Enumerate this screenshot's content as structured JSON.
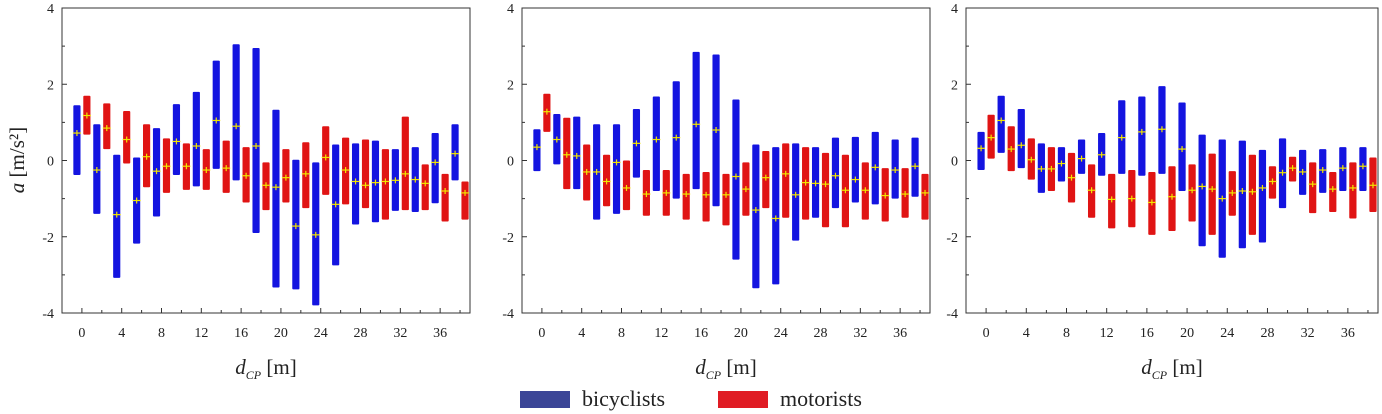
{
  "colors": {
    "bicyclists": "#1414e0",
    "motorists": "#e01414",
    "mean_marker": "#f2e600",
    "legend_bicyclists": "#3b4597",
    "legend_motorists": "#e01c24"
  },
  "axis_labels": {
    "ylabel_symbol": "a",
    "ylabel_unit": "[m/s²]",
    "xlabel_symbol": "d",
    "xlabel_subscript": "CP",
    "xlabel_unit": "[m]"
  },
  "legend": {
    "bicyclists": "bicyclists",
    "motorists": "motorists"
  },
  "chart_data": [
    {
      "type": "range-bar",
      "xlim": [
        -2,
        39
      ],
      "ylim": [
        -4,
        4
      ],
      "xticks": [
        0,
        4,
        8,
        12,
        16,
        20,
        24,
        28,
        32,
        36
      ],
      "yticks": [
        -4,
        -2,
        0,
        2,
        4
      ],
      "series": [
        {
          "name": "bicyclists",
          "x": [
            -0.5,
            1.5,
            3.5,
            5.5,
            7.5,
            9.5,
            11.5,
            13.5,
            15.5,
            17.5,
            19.5,
            21.5,
            23.5,
            25.5,
            27.5,
            29.5,
            31.5,
            33.5,
            35.5,
            37.5
          ],
          "low": [
            -0.38,
            -1.4,
            -3.08,
            -2.18,
            -1.47,
            -0.38,
            -0.68,
            -0.22,
            -0.52,
            -1.9,
            -3.33,
            -3.38,
            -3.8,
            -2.75,
            -1.68,
            -1.62,
            -1.32,
            -1.35,
            -1.12,
            -0.52
          ],
          "high": [
            1.45,
            0.95,
            0.15,
            0.08,
            0.85,
            1.48,
            1.8,
            2.62,
            3.05,
            2.95,
            1.33,
            0.02,
            -0.05,
            0.42,
            0.45,
            0.52,
            0.3,
            0.35,
            0.72,
            0.95
          ],
          "mean": [
            0.72,
            -0.25,
            -1.42,
            -1.05,
            -0.28,
            0.5,
            0.38,
            1.05,
            0.9,
            0.38,
            -0.7,
            -1.72,
            -1.95,
            -1.15,
            -0.55,
            -0.58,
            -0.52,
            -0.5,
            -0.05,
            0.18
          ]
        },
        {
          "name": "motorists",
          "x": [
            0.5,
            2.5,
            4.5,
            6.5,
            8.5,
            10.5,
            12.5,
            14.5,
            16.5,
            18.5,
            20.5,
            22.5,
            24.5,
            26.5,
            28.5,
            30.5,
            32.5,
            34.5,
            36.5,
            38.5
          ],
          "low": [
            0.68,
            0.3,
            -0.08,
            -0.7,
            -0.85,
            -0.77,
            -0.77,
            -0.85,
            -1.1,
            -1.3,
            -1.1,
            -1.25,
            -0.9,
            -1.15,
            -1.25,
            -1.55,
            -1.3,
            -1.3,
            -1.6,
            -1.55
          ],
          "high": [
            1.7,
            1.5,
            1.3,
            0.95,
            0.58,
            0.45,
            0.3,
            0.52,
            0.35,
            -0.05,
            0.3,
            0.48,
            0.9,
            0.6,
            0.55,
            0.3,
            1.15,
            -0.1,
            -0.35,
            -0.55
          ],
          "mean": [
            1.18,
            0.85,
            0.55,
            0.1,
            -0.15,
            -0.15,
            -0.25,
            -0.2,
            -0.4,
            -0.65,
            -0.45,
            -0.35,
            0.08,
            -0.25,
            -0.65,
            -0.55,
            -0.35,
            -0.6,
            -0.8,
            -0.85
          ]
        }
      ]
    },
    {
      "type": "range-bar",
      "xlim": [
        -2,
        39
      ],
      "ylim": [
        -4,
        4
      ],
      "xticks": [
        0,
        4,
        8,
        12,
        16,
        20,
        24,
        28,
        32,
        36
      ],
      "yticks": [
        -4,
        -2,
        0,
        2,
        4
      ],
      "series": [
        {
          "name": "bicyclists",
          "x": [
            -0.5,
            1.5,
            3.5,
            5.5,
            7.5,
            9.5,
            11.5,
            13.5,
            15.5,
            17.5,
            19.5,
            21.5,
            23.5,
            25.5,
            27.5,
            29.5,
            31.5,
            33.5,
            35.5,
            37.5
          ],
          "low": [
            -0.28,
            -0.1,
            -0.75,
            -1.55,
            -1.4,
            -0.45,
            -0.8,
            -1.0,
            -0.75,
            -1.2,
            -2.6,
            -3.35,
            -3.25,
            -2.1,
            -1.5,
            -1.25,
            -1.1,
            -1.15,
            -1.0,
            -0.95
          ],
          "high": [
            0.82,
            1.22,
            1.15,
            0.95,
            0.95,
            1.35,
            1.68,
            2.08,
            2.85,
            2.78,
            1.6,
            0.42,
            0.35,
            0.45,
            0.35,
            0.6,
            0.62,
            0.75,
            0.55,
            0.6
          ],
          "mean": [
            0.35,
            0.55,
            0.12,
            -0.3,
            -0.05,
            0.45,
            0.55,
            0.6,
            0.95,
            0.8,
            -0.42,
            -1.3,
            -1.52,
            -0.9,
            -0.6,
            -0.4,
            -0.5,
            -0.18,
            -0.25,
            -0.15
          ]
        },
        {
          "name": "motorists",
          "x": [
            0.5,
            2.5,
            4.5,
            6.5,
            8.5,
            10.5,
            12.5,
            14.5,
            16.5,
            18.5,
            20.5,
            22.5,
            24.5,
            26.5,
            28.5,
            30.5,
            32.5,
            34.5,
            36.5,
            38.5
          ],
          "low": [
            0.75,
            -0.75,
            -1.05,
            -1.2,
            -1.3,
            -1.45,
            -1.45,
            -1.55,
            -1.6,
            -1.7,
            -1.45,
            -1.25,
            -1.5,
            -1.55,
            -1.75,
            -1.75,
            -1.55,
            -1.6,
            -1.5,
            -1.55
          ],
          "high": [
            1.75,
            1.12,
            0.42,
            0.15,
            0.0,
            -0.25,
            -0.25,
            -0.35,
            -0.3,
            -0.35,
            -0.05,
            0.25,
            0.45,
            0.35,
            0.2,
            0.15,
            -0.05,
            -0.2,
            -0.2,
            -0.35
          ],
          "mean": [
            1.28,
            0.15,
            -0.3,
            -0.55,
            -0.72,
            -0.88,
            -0.85,
            -0.88,
            -0.9,
            -0.9,
            -0.75,
            -0.45,
            -0.35,
            -0.58,
            -0.62,
            -0.78,
            -0.78,
            -0.92,
            -0.88,
            -0.85
          ]
        }
      ]
    },
    {
      "type": "range-bar",
      "xlim": [
        -2,
        39
      ],
      "ylim": [
        -4,
        4
      ],
      "xticks": [
        0,
        4,
        8,
        12,
        16,
        20,
        24,
        28,
        32,
        36
      ],
      "yticks": [
        -4,
        -2,
        0,
        2,
        4
      ],
      "series": [
        {
          "name": "bicyclists",
          "x": [
            -0.5,
            1.5,
            3.5,
            5.5,
            7.5,
            9.5,
            11.5,
            13.5,
            15.5,
            17.5,
            19.5,
            21.5,
            23.5,
            25.5,
            27.5,
            29.5,
            31.5,
            33.5,
            35.5,
            37.5
          ],
          "low": [
            -0.25,
            0.2,
            -0.2,
            -0.85,
            -0.55,
            -0.35,
            -0.4,
            -0.35,
            -0.4,
            -0.35,
            -0.8,
            -2.25,
            -2.55,
            -2.3,
            -2.15,
            -1.25,
            -0.9,
            -0.85,
            -0.8,
            -0.8
          ],
          "high": [
            0.75,
            1.7,
            1.35,
            0.45,
            0.35,
            0.55,
            0.72,
            1.58,
            1.68,
            1.95,
            1.52,
            0.68,
            0.55,
            0.52,
            0.28,
            0.58,
            0.28,
            0.3,
            0.35,
            0.35
          ],
          "mean": [
            0.32,
            1.05,
            0.4,
            -0.22,
            -0.08,
            0.05,
            0.15,
            0.6,
            0.75,
            0.82,
            0.3,
            -0.68,
            -1.0,
            -0.8,
            -0.72,
            -0.32,
            -0.3,
            -0.25,
            -0.2,
            -0.15
          ]
        },
        {
          "name": "motorists",
          "x": [
            0.5,
            2.5,
            4.5,
            6.5,
            8.5,
            10.5,
            12.5,
            14.5,
            16.5,
            18.5,
            20.5,
            22.5,
            24.5,
            26.5,
            28.5,
            30.5,
            32.5,
            34.5,
            36.5,
            38.5
          ],
          "low": [
            0.05,
            -0.28,
            -0.5,
            -0.8,
            -1.1,
            -1.5,
            -1.78,
            -1.75,
            -1.95,
            -1.85,
            -1.6,
            -1.95,
            -1.45,
            -1.95,
            -1.0,
            -0.55,
            -1.38,
            -1.35,
            -1.52,
            -1.35
          ],
          "high": [
            1.2,
            0.9,
            0.58,
            0.35,
            0.2,
            -0.1,
            -0.35,
            -0.25,
            -0.3,
            -0.15,
            -0.1,
            0.18,
            -0.28,
            0.15,
            -0.15,
            0.1,
            -0.05,
            -0.3,
            -0.05,
            0.08
          ],
          "mean": [
            0.6,
            0.3,
            0.02,
            -0.22,
            -0.45,
            -0.78,
            -1.02,
            -1.0,
            -1.1,
            -0.95,
            -0.78,
            -0.75,
            -0.85,
            -0.82,
            -0.55,
            -0.2,
            -0.62,
            -0.75,
            -0.72,
            -0.65
          ]
        }
      ]
    }
  ]
}
